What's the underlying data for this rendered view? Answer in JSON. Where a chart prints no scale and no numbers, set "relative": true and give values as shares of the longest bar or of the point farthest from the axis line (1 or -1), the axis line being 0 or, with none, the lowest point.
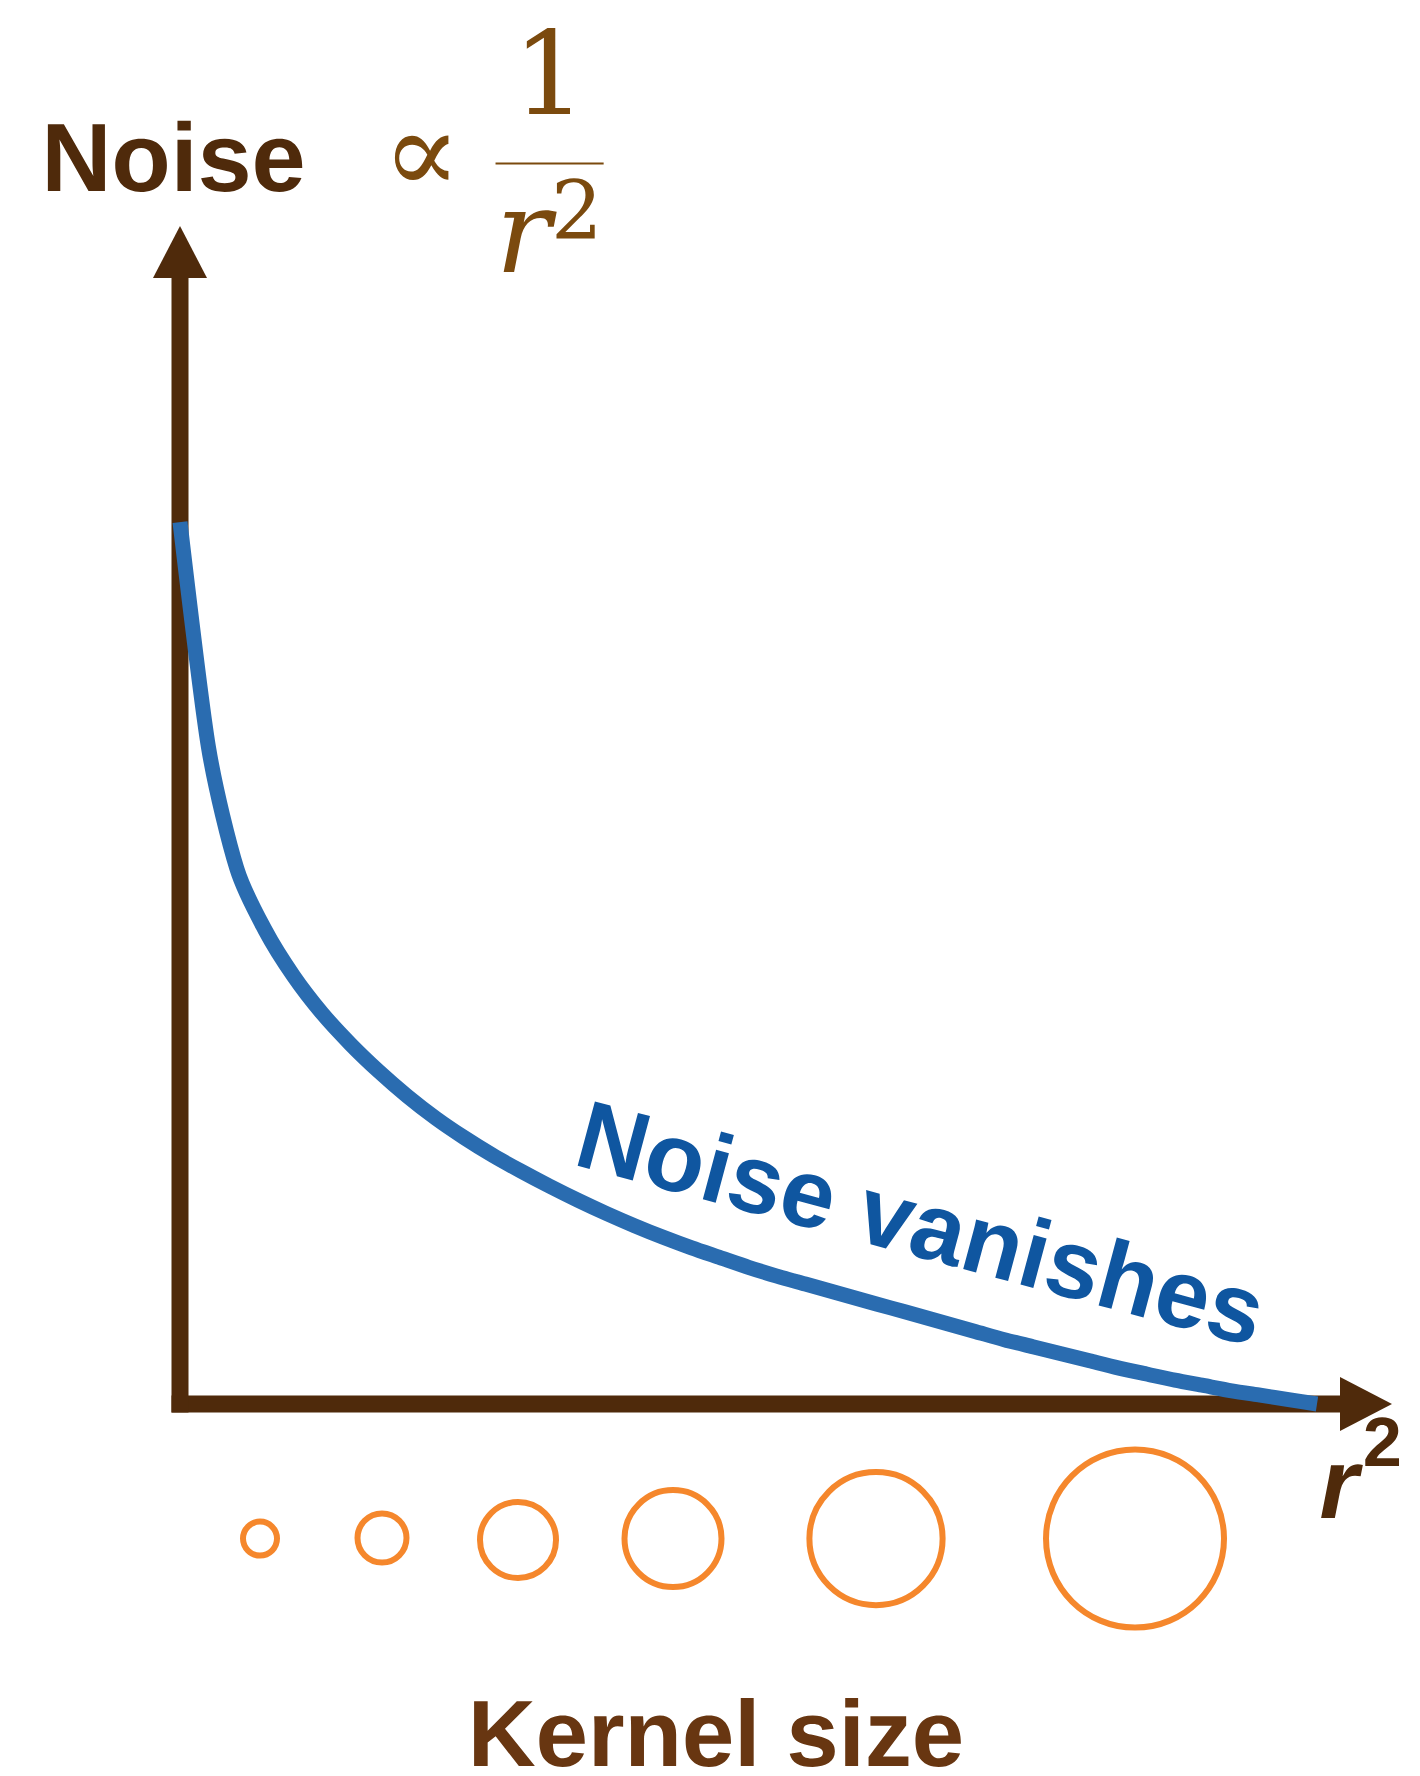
{
  "chart_data": {
    "type": "line",
    "relative": true,
    "ylabel": "Noise",
    "xlabel": "*r*$^{2}$",
    "annotations": [
      "\\propto \\frac{1}{r^{2}}",
      "Noise vanishes",
      "Kernel size"
    ],
    "categories": [
      null,
      null,
      null,
      null,
      null,
      null,
      null,
      null,
      null,
      null,
      null,
      null,
      null,
      null,
      null,
      null,
      null,
      null,
      null,
      null,
      null,
      null,
      null,
      null,
      null,
      null,
      null,
      null,
      null,
      null,
      null,
      null,
      null,
      null,
      null,
      null,
      null,
      null,
      null,
      null,
      null
    ],
    "values": [
      1.0,
      0.745,
      0.607,
      0.537,
      0.485,
      0.443,
      0.408,
      0.377,
      0.349,
      0.324,
      0.302,
      0.282,
      0.264,
      0.247,
      0.231,
      0.216,
      0.202,
      0.189,
      0.177,
      0.166,
      0.155,
      0.145,
      0.136,
      0.127,
      0.118,
      0.109,
      0.1,
      0.091,
      0.082,
      0.073,
      0.065,
      0.057,
      0.049,
      0.041,
      0.034,
      0.027,
      0.021,
      0.015,
      0.01,
      0.005,
      0
    ],
    "color": "#2a6cb0"
  }
}
